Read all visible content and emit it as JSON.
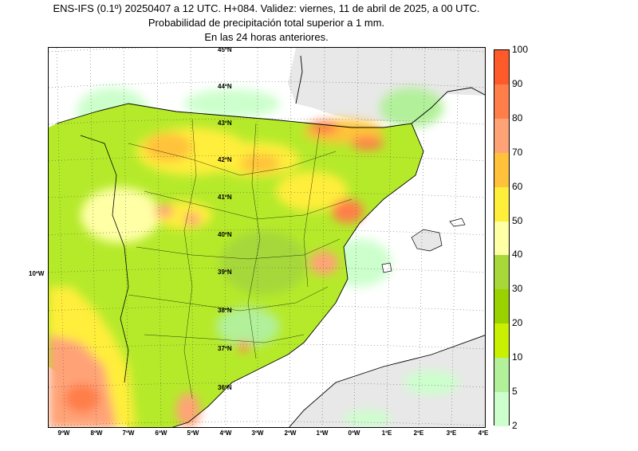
{
  "title": {
    "line1": "ENS-IFS (0.1º) 20250407 a 12 UTC. H+084. Validez: viernes, 11 de abril de 2025, a 00 UTC.",
    "line2": "Probabilidad de precipitación total superior a 1 mm.",
    "line3": "En las 24 horas anteriores."
  },
  "map": {
    "lat_labels": [
      "45ºN",
      "44ºN",
      "43ºN",
      "42ºN",
      "41ºN",
      "40ºN",
      "39ºN",
      "38ºN",
      "37ºN",
      "36ºN"
    ],
    "lon_labels": [
      "9ºW",
      "8ºW",
      "7ºW",
      "6ºW",
      "5ºW",
      "4ºW",
      "3ºW",
      "2ºW",
      "1ºW",
      "0ºW",
      "1ºE",
      "2ºE",
      "3ºE",
      "4ºE"
    ],
    "side_label": "10ºW"
  },
  "colorbar": {
    "labels": [
      "100",
      "90",
      "80",
      "70",
      "60",
      "50",
      "40",
      "30",
      "20",
      "10",
      "5",
      "2"
    ],
    "colors": [
      "#ff5a2a",
      "#ff7e4a",
      "#ffa377",
      "#ffc23a",
      "#ffee3a",
      "#ffffa6",
      "#a6d83a",
      "#9ad200",
      "#c8f000",
      "#b2f09a",
      "#ccffcc"
    ]
  }
}
